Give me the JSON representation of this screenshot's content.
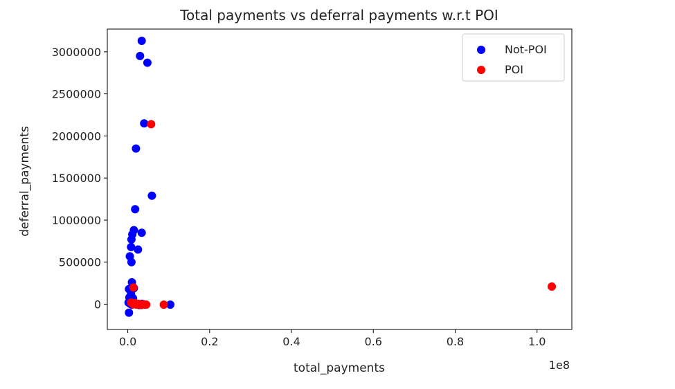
{
  "chart_data": {
    "type": "scatter",
    "title": "Total payments vs deferral payments w.r.t POI",
    "xlabel": "total_payments",
    "ylabel": "deferral_payments",
    "x_offset_label": "1e8",
    "xlim": [
      -5000000,
      108500000
    ],
    "ylim": [
      -300000,
      3270000
    ],
    "x_ticks": [
      0,
      20000000,
      40000000,
      60000000,
      80000000,
      100000000
    ],
    "x_tick_labels": [
      "0.0",
      "0.2",
      "0.4",
      "0.6",
      "0.8",
      "1.0"
    ],
    "y_ticks": [
      0,
      500000,
      1000000,
      1500000,
      2000000,
      2500000,
      3000000
    ],
    "y_tick_labels": [
      "0",
      "500000",
      "1000000",
      "1500000",
      "2000000",
      "2500000",
      "3000000"
    ],
    "grid": false,
    "legend_position": "top-right",
    "series": [
      {
        "name": "Not-POI",
        "color": "#0000ff",
        "points": [
          [
            3400000,
            3130000
          ],
          [
            3000000,
            2950000
          ],
          [
            4800000,
            2870000
          ],
          [
            4000000,
            2150000
          ],
          [
            2000000,
            1850000
          ],
          [
            5900000,
            1290000
          ],
          [
            1800000,
            1130000
          ],
          [
            1500000,
            880000
          ],
          [
            3400000,
            850000
          ],
          [
            1100000,
            830000
          ],
          [
            900000,
            770000
          ],
          [
            800000,
            680000
          ],
          [
            2500000,
            650000
          ],
          [
            500000,
            570000
          ],
          [
            900000,
            500000
          ],
          [
            1000000,
            260000
          ],
          [
            300000,
            180000
          ],
          [
            1500000,
            190000
          ],
          [
            800000,
            120000
          ],
          [
            400000,
            80000
          ],
          [
            1300000,
            70000
          ],
          [
            200000,
            20000
          ],
          [
            600000,
            5000
          ],
          [
            1000000,
            -5000
          ],
          [
            1600000,
            10000
          ],
          [
            2200000,
            0
          ],
          [
            2800000,
            -10000
          ],
          [
            3500000,
            5000
          ],
          [
            4200000,
            -5000
          ],
          [
            10400000,
            -5000
          ],
          [
            300000,
            -100000
          ]
        ]
      },
      {
        "name": "POI",
        "color": "#ff0000",
        "points": [
          [
            5700000,
            2140000
          ],
          [
            1400000,
            200000
          ],
          [
            800000,
            20000
          ],
          [
            1300000,
            0
          ],
          [
            1700000,
            15000
          ],
          [
            2100000,
            -5000
          ],
          [
            2600000,
            5000
          ],
          [
            3300000,
            -10000
          ],
          [
            3800000,
            0
          ],
          [
            4500000,
            -5000
          ],
          [
            8800000,
            -5000
          ],
          [
            103600000,
            210000
          ]
        ]
      }
    ]
  }
}
